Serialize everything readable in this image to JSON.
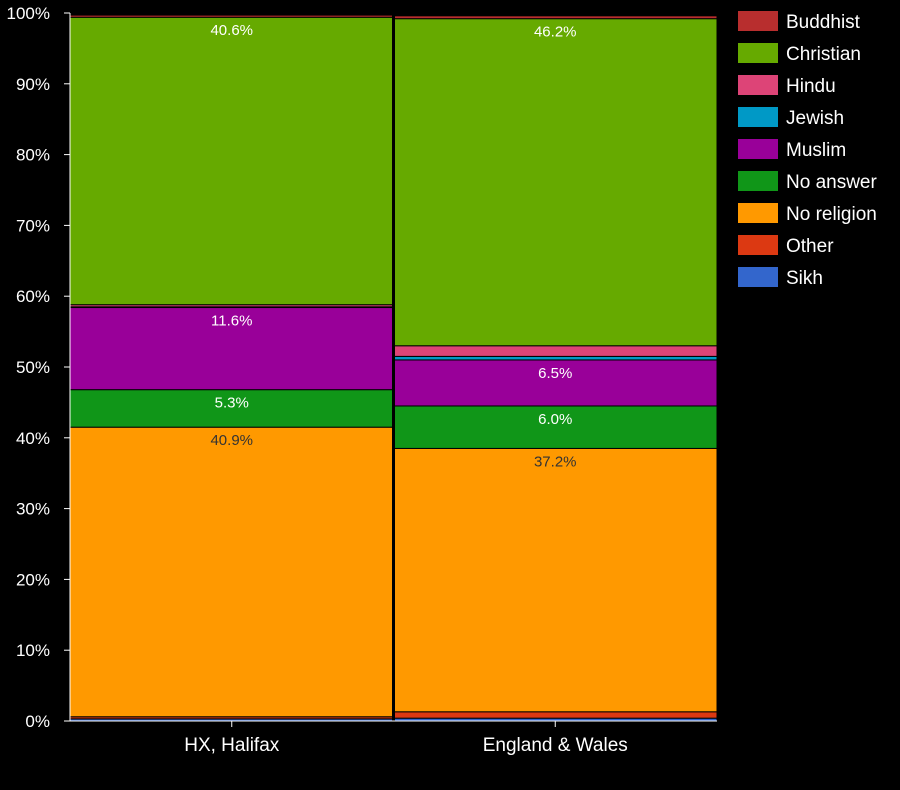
{
  "chart_data": {
    "type": "bar",
    "stacked": true,
    "title": "",
    "xlabel": "",
    "ylabel": "",
    "ylim": [
      0,
      100
    ],
    "yticks": [
      "0%",
      "10%",
      "20%",
      "30%",
      "40%",
      "50%",
      "60%",
      "70%",
      "80%",
      "90%",
      "100%"
    ],
    "categories": [
      "HX, Halifax",
      "England & Wales"
    ],
    "legend_position": "right",
    "series": [
      {
        "name": "Sikh",
        "color": "#3366cc",
        "values": [
          0.3,
          0.4
        ]
      },
      {
        "name": "Other",
        "color": "#dc3912",
        "values": [
          0.3,
          0.9
        ]
      },
      {
        "name": "No religion",
        "color": "#ff9900",
        "values": [
          40.9,
          37.2
        ]
      },
      {
        "name": "No answer",
        "color": "#109618",
        "values": [
          5.3,
          6.0
        ]
      },
      {
        "name": "Muslim",
        "color": "#990099",
        "values": [
          11.6,
          6.5
        ]
      },
      {
        "name": "Jewish",
        "color": "#0099c6",
        "values": [
          0.1,
          0.5
        ]
      },
      {
        "name": "Hindu",
        "color": "#dd4477",
        "values": [
          0.3,
          1.5
        ]
      },
      {
        "name": "Christian",
        "color": "#66aa00",
        "values": [
          40.6,
          46.2
        ]
      },
      {
        "name": "Buddhist",
        "color": "#b82e2e",
        "values": [
          0.3,
          0.4
        ]
      }
    ],
    "data_labels": [
      {
        "series": "No religion",
        "texts": [
          "40.9%",
          "37.2%"
        ]
      },
      {
        "series": "No answer",
        "texts": [
          "5.3%",
          "6.0%"
        ]
      },
      {
        "series": "Muslim",
        "texts": [
          "11.6%",
          "6.5%"
        ]
      },
      {
        "series": "Christian",
        "texts": [
          "40.6%",
          "46.2%"
        ]
      }
    ],
    "legend": [
      "Buddhist",
      "Christian",
      "Hindu",
      "Jewish",
      "Muslim",
      "No answer",
      "No religion",
      "Other",
      "Sikh"
    ]
  }
}
